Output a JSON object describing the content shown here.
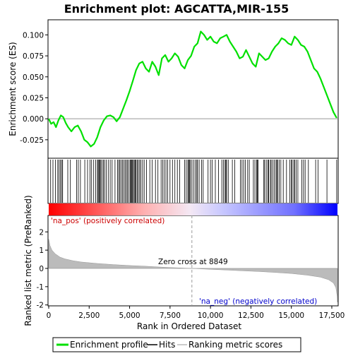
{
  "chart_data": {
    "type": "line",
    "title": "Enrichment plot: AGCATTA,MIR-155",
    "colors": {
      "enrichment_line": "#00e000",
      "hits": "#000000",
      "metric_fill": "#bbbbbb",
      "zero_line": "#999999",
      "pos_label": "#cc0000",
      "neg_label": "#0000cc",
      "bar_red": "#ff0000",
      "bar_blue": "#0000ff"
    },
    "xlim": [
      0,
      17850
    ],
    "top_panel": {
      "ylabel": "Enrichment score (ES)",
      "ylim": [
        -0.047,
        0.118
      ],
      "yticks": [
        -0.025,
        0.0,
        0.025,
        0.05,
        0.075,
        0.1
      ],
      "ytick_labels": [
        "-0.025",
        "0.000",
        "0.025",
        "0.050",
        "0.075",
        "0.100"
      ],
      "series": [
        {
          "name": "Enrichment profile",
          "points": [
            [
              0,
              0
            ],
            [
              150,
              -0.006
            ],
            [
              300,
              -0.004
            ],
            [
              450,
              -0.01
            ],
            [
              600,
              -0.002
            ],
            [
              750,
              0.004
            ],
            [
              900,
              0.002
            ],
            [
              1050,
              -0.005
            ],
            [
              1200,
              -0.01
            ],
            [
              1400,
              -0.015
            ],
            [
              1600,
              -0.01
            ],
            [
              1800,
              -0.008
            ],
            [
              2000,
              -0.015
            ],
            [
              2200,
              -0.025
            ],
            [
              2400,
              -0.028
            ],
            [
              2600,
              -0.033
            ],
            [
              2800,
              -0.03
            ],
            [
              3000,
              -0.022
            ],
            [
              3200,
              -0.01
            ],
            [
              3400,
              -0.002
            ],
            [
              3600,
              0.003
            ],
            [
              3800,
              0.004
            ],
            [
              4000,
              0.002
            ],
            [
              4200,
              -0.003
            ],
            [
              4400,
              0.002
            ],
            [
              4600,
              0.012
            ],
            [
              4800,
              0.022
            ],
            [
              5000,
              0.033
            ],
            [
              5200,
              0.045
            ],
            [
              5400,
              0.058
            ],
            [
              5600,
              0.066
            ],
            [
              5800,
              0.068
            ],
            [
              6000,
              0.06
            ],
            [
              6200,
              0.056
            ],
            [
              6400,
              0.068
            ],
            [
              6600,
              0.062
            ],
            [
              6800,
              0.052
            ],
            [
              7000,
              0.072
            ],
            [
              7200,
              0.076
            ],
            [
              7400,
              0.068
            ],
            [
              7600,
              0.072
            ],
            [
              7800,
              0.078
            ],
            [
              8000,
              0.074
            ],
            [
              8200,
              0.064
            ],
            [
              8400,
              0.06
            ],
            [
              8600,
              0.07
            ],
            [
              8800,
              0.075
            ],
            [
              9000,
              0.086
            ],
            [
              9200,
              0.09
            ],
            [
              9400,
              0.104
            ],
            [
              9600,
              0.1
            ],
            [
              9800,
              0.094
            ],
            [
              10000,
              0.098
            ],
            [
              10200,
              0.092
            ],
            [
              10400,
              0.09
            ],
            [
              10600,
              0.096
            ],
            [
              10800,
              0.098
            ],
            [
              11000,
              0.1
            ],
            [
              11200,
              0.092
            ],
            [
              11400,
              0.086
            ],
            [
              11600,
              0.08
            ],
            [
              11800,
              0.072
            ],
            [
              12000,
              0.074
            ],
            [
              12200,
              0.082
            ],
            [
              12400,
              0.074
            ],
            [
              12600,
              0.066
            ],
            [
              12800,
              0.062
            ],
            [
              13000,
              0.078
            ],
            [
              13200,
              0.074
            ],
            [
              13400,
              0.07
            ],
            [
              13600,
              0.072
            ],
            [
              13800,
              0.08
            ],
            [
              14000,
              0.086
            ],
            [
              14200,
              0.09
            ],
            [
              14400,
              0.096
            ],
            [
              14600,
              0.094
            ],
            [
              14800,
              0.09
            ],
            [
              15000,
              0.088
            ],
            [
              15200,
              0.098
            ],
            [
              15400,
              0.094
            ],
            [
              15600,
              0.088
            ],
            [
              15800,
              0.086
            ],
            [
              16000,
              0.08
            ],
            [
              16200,
              0.07
            ],
            [
              16400,
              0.06
            ],
            [
              16600,
              0.056
            ],
            [
              16800,
              0.048
            ],
            [
              17000,
              0.038
            ],
            [
              17200,
              0.028
            ],
            [
              17400,
              0.018
            ],
            [
              17600,
              0.008
            ],
            [
              17800,
              0.001
            ]
          ]
        }
      ],
      "legend_labels": [
        "Enrichment profile",
        "Hits",
        "Ranking metric scores"
      ]
    },
    "hits": [
      120,
      260,
      420,
      560,
      640,
      720,
      800,
      860,
      1180,
      1340,
      1720,
      1830,
      1960,
      2230,
      2400,
      2550,
      2650,
      2780,
      2900,
      3010,
      3060,
      3110,
      3160,
      3220,
      3300,
      3380,
      3450,
      3560,
      3680,
      3800,
      3920,
      4100,
      4250,
      4330,
      4400,
      4480,
      4560,
      4640,
      4720,
      4800,
      4870,
      4950,
      5030,
      5080,
      5120,
      5180,
      5230,
      5290,
      5340,
      5400,
      5470,
      5540,
      5620,
      5700,
      5800,
      5900,
      6050,
      6250,
      6400,
      6600,
      6750,
      6950,
      7050,
      7150,
      7250,
      7350,
      7500,
      7650,
      7800,
      7950,
      8100,
      8400,
      8500,
      8600,
      8650,
      8700,
      8760,
      8850,
      8950,
      9050,
      9150,
      9200,
      9300,
      9450,
      9550,
      9850,
      10000,
      10100,
      10300,
      10500,
      10700,
      10800,
      10900,
      10950,
      11000,
      11100,
      11350,
      11500,
      11850,
      11950,
      12050,
      12150,
      12300,
      12400,
      12650,
      12750,
      12850,
      12900,
      12950,
      13300,
      13350,
      13450,
      13550,
      13600,
      13700,
      13750,
      13850,
      13950,
      14050,
      14100,
      14150,
      14250,
      14350,
      14500,
      14700,
      14900,
      15000,
      15050,
      15150,
      15200,
      15300,
      15400,
      15650,
      15750,
      15850,
      16050,
      16500,
      16650,
      17200,
      17800
    ],
    "bottom_panel": {
      "ylabel": "Ranked list metric (PreRanked)",
      "ylim": [
        -2.05,
        2.9
      ],
      "yticks": [
        -2,
        -1,
        0,
        1,
        2
      ],
      "ytick_labels": [
        "-2",
        "-1",
        "0",
        "1",
        "2"
      ],
      "xlabel": "Rank in Ordered Dataset",
      "xticks": [
        0,
        2500,
        5000,
        7500,
        10000,
        12500,
        15000,
        17500
      ],
      "xtick_labels": [
        "0",
        "2,500",
        "5,000",
        "7,500",
        "10,000",
        "12,500",
        "15,000",
        "17,500"
      ],
      "metric_profile": [
        [
          0,
          1.6
        ],
        [
          80,
          1.25
        ],
        [
          200,
          1.0
        ],
        [
          400,
          0.8
        ],
        [
          700,
          0.62
        ],
        [
          1000,
          0.52
        ],
        [
          1500,
          0.42
        ],
        [
          2000,
          0.35
        ],
        [
          3000,
          0.27
        ],
        [
          4000,
          0.21
        ],
        [
          5000,
          0.16
        ],
        [
          6000,
          0.12
        ],
        [
          7000,
          0.07
        ],
        [
          8000,
          0.03
        ],
        [
          8849,
          0.0
        ],
        [
          10000,
          -0.05
        ],
        [
          11000,
          -0.09
        ],
        [
          12000,
          -0.13
        ],
        [
          13000,
          -0.17
        ],
        [
          14000,
          -0.22
        ],
        [
          15000,
          -0.28
        ],
        [
          16000,
          -0.37
        ],
        [
          16800,
          -0.48
        ],
        [
          17300,
          -0.62
        ],
        [
          17600,
          -0.8
        ],
        [
          17750,
          -1.05
        ],
        [
          17830,
          -1.5
        ],
        [
          17850,
          -1.85
        ]
      ],
      "zero_cross_label": "Zero cross at 8849",
      "zero_cross": 8849,
      "pos_label": "'na_pos' (positively correlated)",
      "neg_label": "'na_neg' (negatively correlated)"
    }
  }
}
